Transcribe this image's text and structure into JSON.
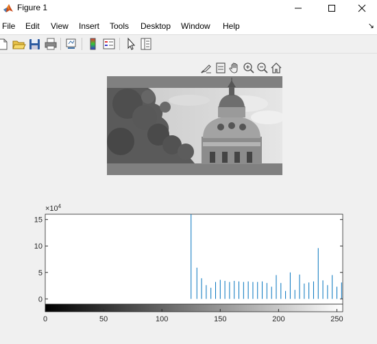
{
  "window": {
    "title": "Figure 1",
    "controls": [
      "minimize",
      "maximize",
      "close"
    ]
  },
  "menu": {
    "items": [
      "File",
      "Edit",
      "View",
      "Insert",
      "Tools",
      "Desktop",
      "Window",
      "Help"
    ]
  },
  "toolbar": {
    "icons": [
      "new-figure-icon",
      "open-file-icon",
      "save-icon",
      "print-icon",
      "link-plot-icon",
      "insert-colorbar-icon",
      "insert-legend-icon",
      "edit-plot-icon",
      "property-inspector-icon"
    ]
  },
  "axes_toolbar": {
    "icons": [
      "brush-icon",
      "data-tips-icon",
      "pan-icon",
      "zoom-in-icon",
      "zoom-out-icon",
      "home-icon"
    ]
  },
  "image": {
    "subject": "grayscale photo of a domed building behind tree foliage"
  },
  "chart_data": {
    "type": "bar",
    "exponent_label": "×10",
    "exponent_power": "4",
    "xlim": [
      0,
      255
    ],
    "ylim": [
      -1,
      16
    ],
    "xticks": [
      "0",
      "50",
      "100",
      "150",
      "200",
      "250"
    ],
    "yticks": [
      "0",
      "5",
      "10",
      "15"
    ],
    "x": [
      125,
      130,
      134,
      138,
      142,
      146,
      150,
      154,
      158,
      162,
      166,
      170,
      174,
      178,
      182,
      186,
      190,
      194,
      198,
      202,
      206,
      210,
      214,
      218,
      222,
      226,
      230,
      234,
      238,
      242,
      246,
      250,
      254
    ],
    "values": [
      16.2,
      5.9,
      3.9,
      2.6,
      2.1,
      3.2,
      3.6,
      3.4,
      3.2,
      3.4,
      3.3,
      3.2,
      3.3,
      3.2,
      3.2,
      3.3,
      3.0,
      2.3,
      4.5,
      3.0,
      1.5,
      5.0,
      1.7,
      4.6,
      2.9,
      3.1,
      3.3,
      9.6,
      3.5,
      2.6,
      4.5,
      2.3,
      3.1
    ],
    "colorbar": "gray 0 to 255"
  }
}
